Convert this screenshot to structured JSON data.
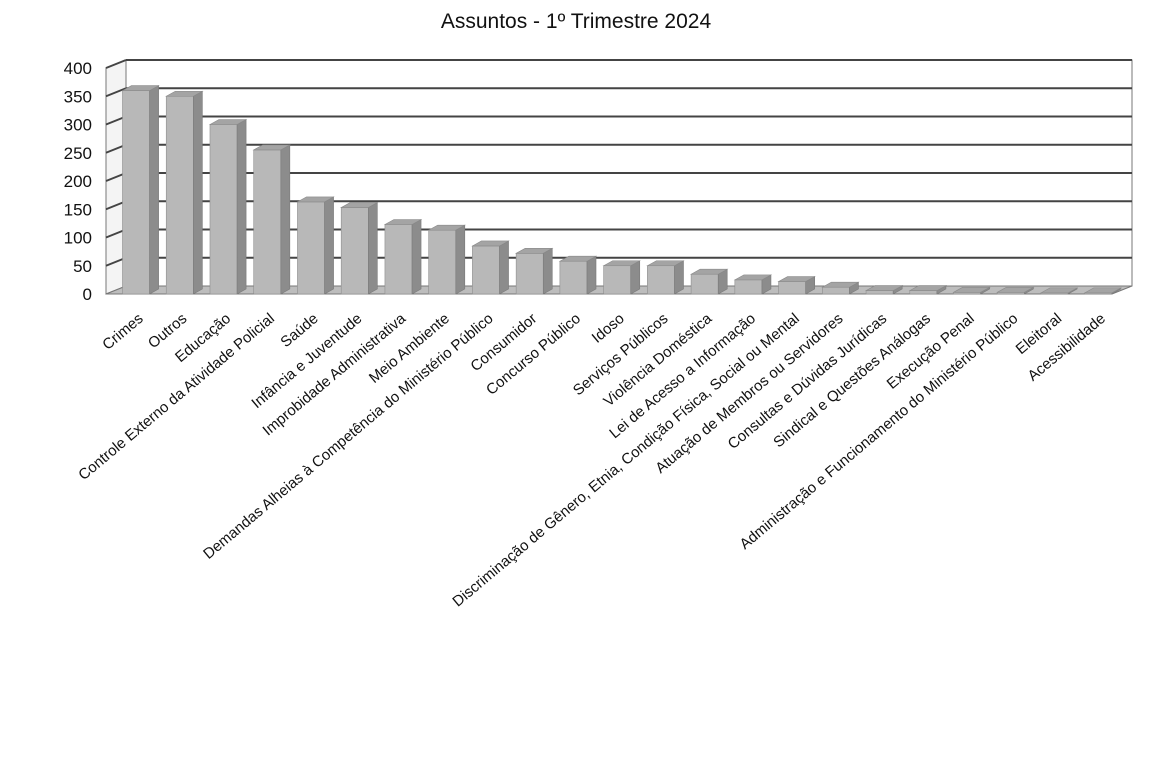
{
  "chart_data": {
    "type": "bar",
    "title": "Assuntos - 1º Trimestre 2024",
    "xlabel": "",
    "ylabel": "",
    "ylim": [
      0,
      400
    ],
    "yticks": [
      0,
      50,
      100,
      150,
      200,
      250,
      300,
      350,
      400
    ],
    "grid": true,
    "legend": "none",
    "bar_color": "#b8b8b8",
    "categories": [
      "Crimes",
      "Outros",
      "Educação",
      "Controle Externo da Atividade Policial",
      "Saúde",
      "Infância e Juventude",
      "Improbidade Administrativa",
      "Meio Ambiente",
      "Demandas Alheias à Competência do Ministério Público",
      "Consumidor",
      "Concurso Público",
      "Idoso",
      "Serviços Públicos",
      "Violência Doméstica",
      "Lei de Acesso a Informação",
      "Discriminação de Gênero, Etnia, Condição Física, Social ou Mental",
      "Atuação de Membros ou Servidores",
      "Consultas e Dúvidas Jurídicas",
      "Sindical e Questões Análogas",
      "Execução Penal",
      "Administração e Funcionamento do Ministério Público",
      "Eleitoral",
      "Acessibilidade"
    ],
    "values": [
      360,
      350,
      300,
      255,
      163,
      153,
      123,
      113,
      85,
      72,
      58,
      50,
      50,
      35,
      25,
      22,
      12,
      6,
      6,
      3,
      3,
      2,
      2
    ]
  }
}
